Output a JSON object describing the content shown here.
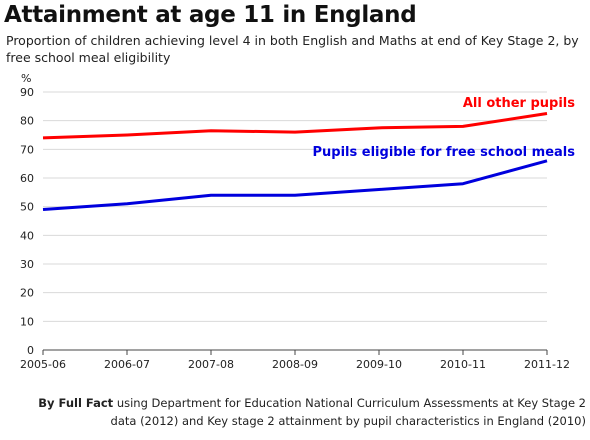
{
  "title": "Attainment at age 11 in England",
  "subtitle": "Proportion of children achieving level 4 in both English and Maths at end of Key Stage 2, by free school meal eligibility",
  "source": {
    "author": "By Full Fact",
    "text": "using Department for Education National Curriculum Assessments at Key Stage 2 data (2012) and Key stage 2 attainment by pupil characteristics in England (2010)"
  },
  "chart_data": {
    "type": "line",
    "ylabel": "%",
    "ylim": [
      0,
      90
    ],
    "yticks": [
      0,
      10,
      20,
      30,
      40,
      50,
      60,
      70,
      80,
      90
    ],
    "categories": [
      "2005-06",
      "2006-07",
      "2007-08",
      "2008-09",
      "2009-10",
      "2010-11",
      "2011-12"
    ],
    "grid": "horizontal",
    "series": [
      {
        "name": "All other pupils",
        "color": "#ff0000",
        "values": [
          74,
          75,
          76.5,
          76,
          77.5,
          78,
          82.5
        ]
      },
      {
        "name": "Pupils eligible for free school meals",
        "color": "#0000dd",
        "values": [
          49,
          51,
          54,
          54,
          56,
          58,
          66
        ]
      }
    ]
  }
}
